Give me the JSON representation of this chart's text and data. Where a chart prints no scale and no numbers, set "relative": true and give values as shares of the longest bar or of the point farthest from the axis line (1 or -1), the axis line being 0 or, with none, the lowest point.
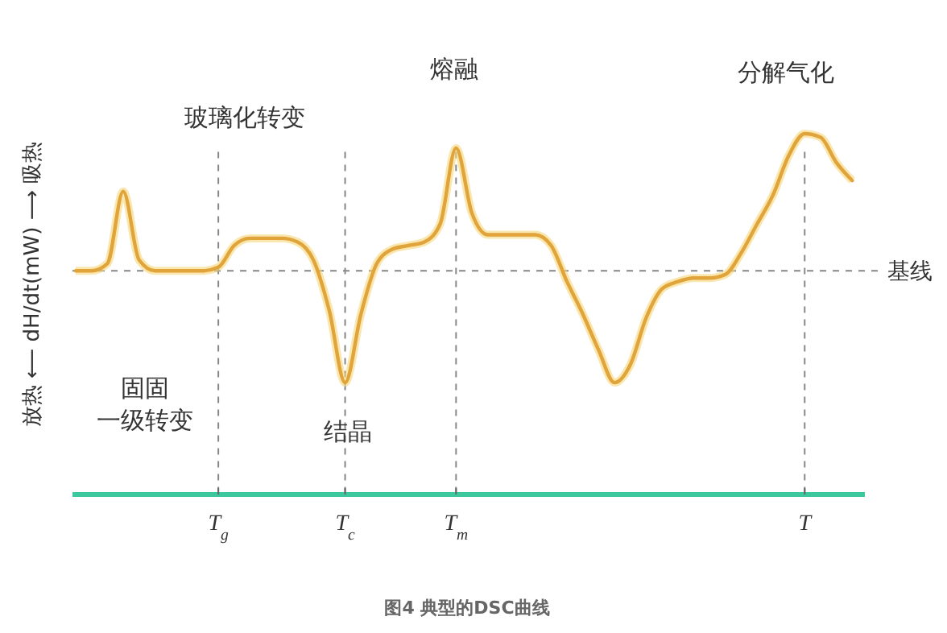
{
  "chart_data": {
    "type": "line",
    "relative": true,
    "tick_labels": "x",
    "grid": "x",
    "color": "#e0a43a",
    "line_style": "solid",
    "ylabel": "放热 ⟵ dH/dt(mW) ⟶ 吸热",
    "categories": [
      null,
      null,
      null,
      null,
      null,
      null,
      null,
      null,
      null,
      "T$_{g}$",
      null,
      null,
      null,
      null,
      null,
      null,
      null,
      "T$_{c}$",
      null,
      null,
      null,
      null,
      null,
      null,
      "T$_{m}$",
      null,
      null,
      null,
      null,
      null,
      null,
      null,
      null,
      null,
      null,
      null,
      null,
      null,
      null,
      null,
      null,
      null,
      null,
      null,
      null,
      null,
      "T",
      null,
      null,
      null
    ],
    "values": [
      0.62,
      0.62,
      0.64,
      0.84,
      0.65,
      0.62,
      0.62,
      0.62,
      0.62,
      0.63,
      0.69,
      0.71,
      0.71,
      0.71,
      0.7,
      0.65,
      0.51,
      0.31,
      0.5,
      0.64,
      0.68,
      0.69,
      0.7,
      0.75,
      0.96,
      0.78,
      0.72,
      0.72,
      0.72,
      0.72,
      0.69,
      0.59,
      0.5,
      0.4,
      0.31,
      0.36,
      0.49,
      0.57,
      0.59,
      0.6,
      0.6,
      0.61,
      0.67,
      0.75,
      0.83,
      0.94,
      1,
      0.99,
      0.92,
      0.87
    ],
    "ref_lines": [
      {
        "axis": "y",
        "value": 0.62,
        "label": "基线",
        "color": "#888888",
        "line_style": "dashed"
      }
    ],
    "annotations": [
      "玻璃化转变",
      "熔融",
      "分解气化",
      "结晶",
      "固固一级转变",
      "图4 典型的DSC曲线"
    ]
  }
}
